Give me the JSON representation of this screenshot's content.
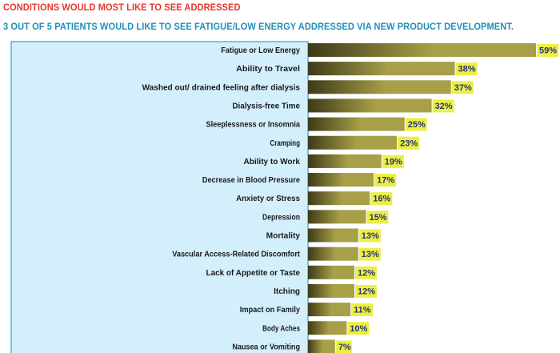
{
  "title": "CONDITIONS WOULD MOST LIKE TO SEE ADDRESSED",
  "subtitle": "3 OUT OF 5 PATIENTS WOULD LIKE TO SEE FATIGUE/LOW ENERGY ADDRESSED VIA NEW PRODUCT DEVELOPMENT.",
  "colors": {
    "title": "#e8352c",
    "subtitle": "#1d8fb8",
    "panel_fill": "#d3effc",
    "panel_border": "#2aa0d6",
    "bar_dark": "#3d3a18",
    "bar_light": "#a8a048",
    "label_bg": "#ecef44",
    "value_text": "#27347a"
  },
  "chart_data": {
    "type": "bar",
    "orientation": "horizontal",
    "categories": [
      "Fatigue or Low Energy",
      "Ability to Travel",
      "Washed out/ drained feeling after dialysis",
      "Dialysis-free Time",
      "Sleeplessness or Insomnia",
      "Cramping",
      "Ability to Work",
      "Decrease in Blood Pressure",
      "Anxiety or Stress",
      "Depression",
      "Mortality",
      "Vascular Access-Related Discomfort",
      "Lack of Appetite or Taste",
      "Itching",
      "Impact on Family",
      "Body Aches",
      "Nausea or Vomiting"
    ],
    "values": [
      59,
      38,
      37,
      32,
      25,
      23,
      19,
      17,
      16,
      15,
      13,
      13,
      12,
      12,
      11,
      10,
      7
    ],
    "value_labels": [
      "59%",
      "38%",
      "37%",
      "32%",
      "25%",
      "23%",
      "19%",
      "17%",
      "16%",
      "15%",
      "13%",
      "13%",
      "12%",
      "12%",
      "11%",
      "10%",
      "7%"
    ],
    "xlim": [
      0,
      59
    ],
    "grid": false,
    "legend": "none"
  }
}
